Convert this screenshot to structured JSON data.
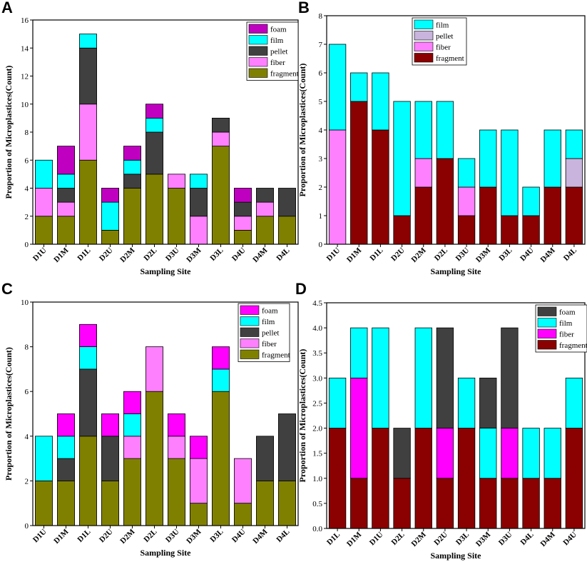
{
  "charts": [
    {
      "panel": "A",
      "type": "bar",
      "stacked": true,
      "categories": [
        "D1U",
        "D1M",
        "D1L",
        "D2U",
        "D2M",
        "D2L",
        "D3U",
        "D3M",
        "D3L",
        "D4U",
        "D4M",
        "D4L"
      ],
      "series": [
        {
          "name": "fragment",
          "color": "#808000",
          "values": [
            2,
            2,
            6,
            1,
            4,
            5,
            4,
            0,
            7,
            1,
            2,
            2
          ]
        },
        {
          "name": "fiber",
          "color": "#ff80ff",
          "values": [
            2,
            1,
            4,
            0,
            0,
            0,
            1,
            2,
            1,
            1,
            1,
            0
          ]
        },
        {
          "name": "pellet",
          "color": "#404040",
          "values": [
            0,
            1,
            4,
            0,
            1,
            3,
            0,
            2,
            1,
            1,
            1,
            2
          ]
        },
        {
          "name": "film",
          "color": "#00ffff",
          "values": [
            2,
            1,
            1,
            2,
            1,
            1,
            0,
            1,
            0,
            0,
            0,
            0
          ]
        },
        {
          "name": "foam",
          "color": "#c000c0",
          "values": [
            0,
            2,
            0,
            1,
            1,
            1,
            0,
            0,
            0,
            1,
            0,
            0
          ]
        }
      ],
      "legend_order": [
        "foam",
        "film",
        "pellet",
        "fiber",
        "fragment"
      ],
      "ylim": [
        0,
        16
      ],
      "yticks": [
        0,
        2,
        4,
        6,
        8,
        10,
        12,
        14,
        16
      ],
      "xlabel": "Sampling Site",
      "ylabel": "Proportion of Microplastices(Count)",
      "legend_position": "top-right"
    },
    {
      "panel": "B",
      "type": "bar",
      "stacked": true,
      "categories": [
        "D1U",
        "D1M",
        "D1L",
        "D2U",
        "D2M",
        "D2L",
        "D3U",
        "D3M",
        "D3L",
        "D4U",
        "D4M",
        "D4L"
      ],
      "series": [
        {
          "name": "fragment",
          "color": "#8b0000",
          "values": [
            0,
            5,
            4,
            1,
            2,
            3,
            1,
            2,
            1,
            1,
            2,
            2
          ]
        },
        {
          "name": "fiber",
          "color": "#ff80ff",
          "values": [
            4,
            0,
            0,
            0,
            1,
            0,
            1,
            0,
            0,
            0,
            0,
            0
          ]
        },
        {
          "name": "pellet",
          "color": "#c8b4dc",
          "values": [
            0,
            0,
            0,
            0,
            0,
            0,
            0,
            0,
            0,
            0,
            0,
            1
          ]
        },
        {
          "name": "film",
          "color": "#00ffff",
          "values": [
            3,
            1,
            2,
            4,
            2,
            2,
            1,
            2,
            3,
            1,
            2,
            1
          ]
        }
      ],
      "legend_order": [
        "film",
        "pellet",
        "fiber",
        "fragment"
      ],
      "ylim": [
        0,
        8
      ],
      "yticks": [
        0,
        1,
        2,
        3,
        4,
        5,
        6,
        7,
        8
      ],
      "xlabel": "Sampling Site",
      "ylabel": "Proportion of Microplastices(Count)",
      "legend_position": "top-right"
    },
    {
      "panel": "C",
      "type": "bar",
      "stacked": true,
      "categories": [
        "D1U",
        "D1M",
        "D1L",
        "D2U",
        "D2M",
        "D2L",
        "D3U",
        "D3M",
        "D3L",
        "D4U",
        "D4M",
        "D4L"
      ],
      "series": [
        {
          "name": "fragment",
          "color": "#808000",
          "values": [
            2,
            2,
            4,
            2,
            3,
            6,
            3,
            1,
            6,
            1,
            2,
            2
          ]
        },
        {
          "name": "fiber",
          "color": "#ff80ff",
          "values": [
            0,
            0,
            0,
            0,
            1,
            2,
            1,
            2,
            0,
            2,
            0,
            0
          ]
        },
        {
          "name": "pellet",
          "color": "#404040",
          "values": [
            0,
            1,
            3,
            2,
            0,
            0,
            0,
            0,
            0,
            0,
            2,
            3
          ]
        },
        {
          "name": "film",
          "color": "#00ffff",
          "values": [
            2,
            1,
            1,
            0,
            1,
            0,
            0,
            0,
            1,
            0,
            0,
            0
          ]
        },
        {
          "name": "foam",
          "color": "#ff00ff",
          "values": [
            0,
            1,
            1,
            1,
            1,
            0,
            1,
            1,
            1,
            0,
            0,
            0
          ]
        }
      ],
      "legend_order": [
        "foam",
        "film",
        "pellet",
        "fiber",
        "fragment"
      ],
      "ylim": [
        0,
        10
      ],
      "yticks": [
        0,
        2,
        4,
        6,
        8,
        10
      ],
      "xlabel": "Sampling Site",
      "ylabel": "Proportion of Microplastices(Count)",
      "legend_position": "top-right"
    },
    {
      "panel": "D",
      "type": "bar",
      "stacked": true,
      "categories": [
        "D1L",
        "D1M",
        "D1U",
        "D2L",
        "D2M",
        "D2U",
        "D3L",
        "D3M",
        "D3U",
        "D4L",
        "D4M",
        "D4U"
      ],
      "series": [
        {
          "name": "fragment",
          "color": "#8b0000",
          "values": [
            2,
            1,
            2,
            1,
            2,
            1,
            2,
            1,
            1,
            1,
            1,
            2
          ]
        },
        {
          "name": "fiber",
          "color": "#ff00ff",
          "values": [
            0,
            2,
            0,
            0,
            0,
            1,
            0,
            0,
            1,
            0,
            0,
            0
          ]
        },
        {
          "name": "film",
          "color": "#00ffff",
          "values": [
            1,
            1,
            2,
            0,
            2,
            0,
            1,
            1,
            0,
            1,
            1,
            1
          ]
        },
        {
          "name": "foam",
          "color": "#404040",
          "values": [
            0,
            0,
            0,
            1,
            0,
            2,
            0,
            1,
            2,
            0,
            0,
            0
          ]
        }
      ],
      "legend_order": [
        "foam",
        "film",
        "fiber",
        "fragment"
      ],
      "ylim": [
        0,
        4.5
      ],
      "yticks": [
        "0.0",
        "0.5",
        "1.0",
        "1.5",
        "2.0",
        "2.5",
        "3.0",
        "3.5",
        "4.0",
        "4.5"
      ],
      "xlabel": "Sampling Site",
      "ylabel": "Proportion of Microplastices(Count)",
      "legend_position": "top-right"
    }
  ]
}
